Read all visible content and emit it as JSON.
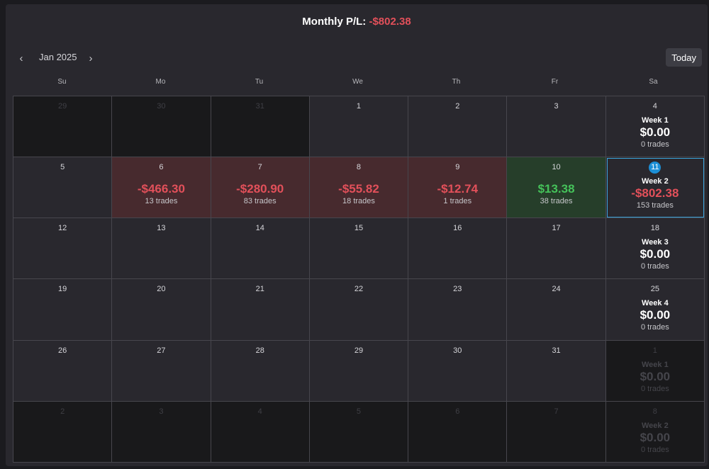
{
  "header": {
    "title": "Monthly P/L:",
    "value": "-$802.38"
  },
  "nav": {
    "prev_icon": "‹",
    "next_icon": "›",
    "month": "Jan 2025",
    "today_label": "Today"
  },
  "weekdays": [
    "Su",
    "Mo",
    "Tu",
    "We",
    "Th",
    "Fr",
    "Sa"
  ],
  "weeks": [
    {
      "days": [
        {
          "num": "29",
          "outside": true
        },
        {
          "num": "30",
          "outside": true
        },
        {
          "num": "31",
          "outside": true
        },
        {
          "num": "1"
        },
        {
          "num": "2"
        },
        {
          "num": "3"
        },
        {
          "num": "4",
          "week_summary": {
            "label": "Week 1",
            "pl": "$0.00",
            "trades": "0 trades"
          }
        }
      ]
    },
    {
      "days": [
        {
          "num": "5"
        },
        {
          "num": "6",
          "status": "loss",
          "pl": "-$466.30",
          "trades": "13 trades"
        },
        {
          "num": "7",
          "status": "loss",
          "pl": "-$280.90",
          "trades": "83 trades"
        },
        {
          "num": "8",
          "status": "loss",
          "pl": "-$55.82",
          "trades": "18 trades"
        },
        {
          "num": "9",
          "status": "loss",
          "pl": "-$12.74",
          "trades": "1 trades"
        },
        {
          "num": "10",
          "status": "gain",
          "pl": "$13.38",
          "trades": "38 trades"
        },
        {
          "num": "11",
          "today": true,
          "week_summary": {
            "label": "Week 2",
            "pl": "-$802.38",
            "trades": "153 trades",
            "negative": true
          }
        }
      ]
    },
    {
      "days": [
        {
          "num": "12"
        },
        {
          "num": "13"
        },
        {
          "num": "14"
        },
        {
          "num": "15"
        },
        {
          "num": "16"
        },
        {
          "num": "17"
        },
        {
          "num": "18",
          "week_summary": {
            "label": "Week 3",
            "pl": "$0.00",
            "trades": "0 trades"
          }
        }
      ]
    },
    {
      "days": [
        {
          "num": "19"
        },
        {
          "num": "20"
        },
        {
          "num": "21"
        },
        {
          "num": "22"
        },
        {
          "num": "23"
        },
        {
          "num": "24"
        },
        {
          "num": "25",
          "week_summary": {
            "label": "Week 4",
            "pl": "$0.00",
            "trades": "0 trades"
          }
        }
      ]
    },
    {
      "days": [
        {
          "num": "26"
        },
        {
          "num": "27"
        },
        {
          "num": "28"
        },
        {
          "num": "29"
        },
        {
          "num": "30"
        },
        {
          "num": "31"
        },
        {
          "num": "1",
          "outside": true,
          "week_summary": {
            "label": "Week 1",
            "pl": "$0.00",
            "trades": "0 trades"
          }
        }
      ]
    },
    {
      "days": [
        {
          "num": "2",
          "outside": true
        },
        {
          "num": "3",
          "outside": true
        },
        {
          "num": "4",
          "outside": true
        },
        {
          "num": "5",
          "outside": true
        },
        {
          "num": "6",
          "outside": true
        },
        {
          "num": "7",
          "outside": true
        },
        {
          "num": "8",
          "outside": true,
          "week_summary": {
            "label": "Week 2",
            "pl": "$0.00",
            "trades": "0 trades"
          }
        }
      ]
    }
  ],
  "colors": {
    "negative": "#e2505a",
    "positive": "#45c25a",
    "today_ring": "#3aa4dc",
    "today_badge": "#1c8fd6"
  }
}
